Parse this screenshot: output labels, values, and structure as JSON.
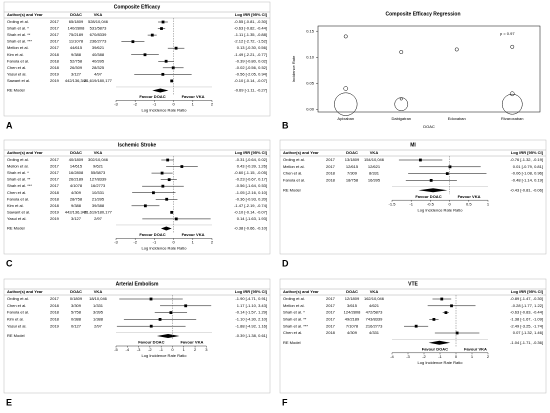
{
  "chart_data": [
    {
      "type": "forest",
      "letter": "A",
      "title": "Composite Efficacy",
      "columns": [
        "Author(s) and Year",
        "DOAC",
        "VKA",
        "Log IRR [95% CI]"
      ],
      "studies": [
        {
          "author": "Ording et al.",
          "year": 2017,
          "doac": "65/1809",
          "vka": "528/10,046",
          "estimate": -0.55,
          "lower": -0.81,
          "upper": -0.3,
          "label": "-0.55 [-0.81, -0.30]"
        },
        {
          "author": "Shah et al. *",
          "year": 2017,
          "doac": "140/2808",
          "vka": "531/5873",
          "estimate": -0.63,
          "lower": -0.82,
          "upper": -0.44,
          "label": "-0.63 [-0.82, -0.44]"
        },
        {
          "author": "Shah et al. **",
          "year": 2017,
          "doac": "75/2189",
          "vka": "670/8339",
          "estimate": -1.11,
          "lower": -1.35,
          "upper": -0.88,
          "label": "-1.11 [-1.35, -0.88]"
        },
        {
          "author": "Shah et al. ***",
          "year": 2017,
          "doac": "11/1078",
          "vka": "236/2773",
          "estimate": -2.12,
          "lower": -2.72,
          "upper": -1.52,
          "label": "-2.12 [-2.72, -1.52]"
        },
        {
          "author": "Mellon et al.",
          "year": 2017,
          "doac": "44/615",
          "vka": "39/621",
          "estimate": 0.13,
          "lower": -0.3,
          "upper": 0.56,
          "label": "0.13 [-0.30, 0.56]"
        },
        {
          "author": "Kim et al.",
          "year": 2018,
          "doac": "9/388",
          "vka": "40/388",
          "estimate": -1.49,
          "lower": -2.21,
          "upper": -0.77,
          "label": "-1.49 [-2.21, -0.77]"
        },
        {
          "author": "Fanola et al.",
          "year": 2018,
          "doac": "52/758",
          "vka": "40/395",
          "estimate": -0.39,
          "lower": -0.8,
          "upper": 0.02,
          "label": "-0.39 [-0.80, 0.02]"
        },
        {
          "author": "Chen et al.",
          "year": 2018,
          "doac": "26/309",
          "vka": "28/325",
          "estimate": -0.02,
          "lower": -0.56,
          "upper": 0.52,
          "label": "-0.02 [-0.56, 0.52]"
        },
        {
          "author": "Yasui et al.",
          "year": 2019,
          "doac": "3/127",
          "vka": "4/97",
          "estimate": -0.56,
          "lower": -2.05,
          "upper": 0.94,
          "label": "-0.56 [-2.05, 0.94]"
        },
        {
          "author": "Sawant et al.",
          "year": 2019,
          "doac": "442/136,340",
          "vka": "21,619/180,177",
          "estimate": -0.1,
          "lower": -0.14,
          "upper": -0.07,
          "label": "-0.10 [-0.14, -0.07]"
        }
      ],
      "summary": {
        "name": "RE Model",
        "estimate": -0.69,
        "lower": -1.11,
        "upper": -0.27,
        "label": "-0.69 [-1.11, -0.27]"
      },
      "xlim": [
        -3,
        2
      ],
      "xticks": [
        -3,
        -2,
        -1,
        0,
        1,
        2
      ],
      "xlabel": "Log Incidence Rate Ratio",
      "favour_left": "Favour DOAC",
      "favour_right": "Favour VKA"
    },
    {
      "type": "scatter",
      "letter": "B",
      "title": "Composite Efficacy Regression",
      "xlabel": "DOAC",
      "ylabel": "Incidence Rate",
      "annotation": "p = 0.97",
      "categories": [
        "Apixaban",
        "Dabigatran",
        "Edoxaban",
        "Rivaroxaban"
      ],
      "x": [
        "Apixaban",
        "Apixaban",
        "Apixaban",
        "Dabigatran",
        "Dabigatran",
        "Dabigatran",
        "Edoxaban",
        "Rivaroxaban",
        "Rivaroxaban",
        "Rivaroxaban"
      ],
      "values": [
        0.14,
        0.01,
        0.04,
        0.11,
        0.01,
        0.02,
        0.115,
        0.12,
        0.01,
        0.03
      ],
      "sizes": [
        2,
        90,
        3,
        2,
        30,
        1,
        2,
        2,
        70,
        3
      ],
      "ylim": [
        -0.005,
        0.16
      ],
      "yticks": [
        {
          "value": 0,
          "label": "0.00"
        },
        {
          "value": 0.05,
          "label": "0.05"
        },
        {
          "value": 0.1,
          "label": "0.10"
        },
        {
          "value": 0.15,
          "label": "0.15"
        }
      ]
    },
    {
      "type": "forest",
      "letter": "C",
      "title": "Ischemic Stroke",
      "columns": [
        "Author(s) and Year",
        "DOAC",
        "VKA",
        "Log IRR [95% CI]"
      ],
      "studies": [
        {
          "author": "Ording et al.",
          "year": 2017,
          "doac": "40/1809",
          "vka": "302/10,046",
          "estimate": -0.31,
          "lower": -0.64,
          "upper": 0.02,
          "label": "-0.31 [-0.64, 0.02]"
        },
        {
          "author": "Mellon et al.",
          "year": 2017,
          "doac": "14/615",
          "vka": "9/621",
          "estimate": 0.43,
          "lower": -0.39,
          "upper": 1.26,
          "label": "0.43 [-0.39, 1.26]"
        },
        {
          "author": "Shah et al. *",
          "year": 2017,
          "doac": "16/2808",
          "vka": "55/5873",
          "estimate": -0.6,
          "lower": -1.15,
          "upper": -0.05,
          "label": "-0.60 [-1.15, -0.05]"
        },
        {
          "author": "Shah et al. **",
          "year": 2017,
          "doac": "26/2189",
          "vka": "127/8339",
          "estimate": -0.23,
          "lower": -0.67,
          "upper": 0.17,
          "label": "-0.23 [-0.67, 0.17]"
        },
        {
          "author": "Shah et al. ***",
          "year": 2017,
          "doac": "4/1078",
          "vka": "16/2773",
          "estimate": -0.56,
          "lower": -1.64,
          "upper": 0.53,
          "label": "-0.56 [-1.64, 0.53]"
        },
        {
          "author": "Chen et al.",
          "year": 2018,
          "doac": "4/309",
          "vka": "10/331",
          "estimate": -1.05,
          "lower": -2.16,
          "upper": 0.1,
          "label": "-1.05 [-2.16, 0.10]"
        },
        {
          "author": "Fanola et al.",
          "year": 2018,
          "doac": "28/758",
          "vka": "21/395",
          "estimate": -0.36,
          "lower": -0.93,
          "upper": 0.2,
          "label": "-0.36 [-0.93, 0.20]"
        },
        {
          "author": "Kim et al.",
          "year": 2018,
          "doac": "9/388",
          "vka": "39/388",
          "estimate": -1.47,
          "lower": -2.19,
          "upper": -0.74,
          "label": "-1.47 [-2.19, -0.74]"
        },
        {
          "author": "Sawant et al.",
          "year": 2019,
          "doac": "442/136,340",
          "vka": "21,619/180,177",
          "estimate": -0.1,
          "lower": -0.14,
          "upper": -0.07,
          "label": "-0.10 [-0.14, -0.07]"
        },
        {
          "author": "Yasui et al.",
          "year": 2019,
          "doac": "3/127",
          "vka": "2/97",
          "estimate": 0.14,
          "lower": -1.63,
          "upper": 1.93,
          "label": "0.14 [-1.63, 1.93]"
        }
      ],
      "summary": {
        "name": "RE Model",
        "estimate": -0.38,
        "lower": -0.66,
        "upper": -0.1,
        "label": "-0.38 [-0.66, -0.10]"
      },
      "xlim": [
        -3,
        2
      ],
      "xticks": [
        -3,
        -2,
        -1,
        0,
        1,
        2
      ],
      "xlabel": "Log Incidence Rate Ratio",
      "favour_left": "Favour DOAC",
      "favour_right": "Favour VKA"
    },
    {
      "type": "forest",
      "letter": "D",
      "title": "MI",
      "columns": [
        "Author(s) and Year",
        "DOAC",
        "VKA",
        "Log IRR [95% CI]"
      ],
      "studies": [
        {
          "author": "Ording et al.",
          "year": 2017,
          "doac": "13/1809",
          "vka": "154/10,046",
          "estimate": -0.76,
          "lower": -1.32,
          "upper": -0.19,
          "label": "-0.76 [-1.32, -0.19]"
        },
        {
          "author": "Mellon et al.",
          "year": 2017,
          "doac": "12/615",
          "vka": "12/621",
          "estimate": 0.01,
          "lower": -0.79,
          "upper": 0.81,
          "label": "0.01 [-0.79, 0.81]"
        },
        {
          "author": "Chen et al.",
          "year": 2018,
          "doac": "7/309",
          "vka": "8/331",
          "estimate": -0.06,
          "lower": -1.08,
          "upper": 0.96,
          "label": "-0.06 [-1.08, 0.96]"
        },
        {
          "author": "Fanola et al.",
          "year": 2018,
          "doac": "18/758",
          "vka": "16/395",
          "estimate": -0.48,
          "lower": -1.14,
          "upper": 0.19,
          "label": "-0.48 [-1.14, 0.19]"
        }
      ],
      "summary": {
        "name": "RE Model",
        "estimate": -0.43,
        "lower": -0.81,
        "upper": -0.06,
        "label": "-0.43 [-0.81, -0.06]"
      },
      "xlim": [
        -1.5,
        1
      ],
      "xticks": [
        -1.5,
        -1,
        -0.5,
        0,
        0.5,
        1
      ],
      "xlabel": "Log Incidence Rate Ratio",
      "favour_left": "Favour DOAC",
      "favour_right": "Favour VKA"
    },
    {
      "type": "forest",
      "letter": "E",
      "title": "Arterial Embolism",
      "columns": [
        "Author(s) and Year",
        "DOAC",
        "VKA",
        "Log IRR [95% CI]"
      ],
      "studies": [
        {
          "author": "Ording et al.",
          "year": 2017,
          "doac": "0/1809",
          "vka": "18/10,046",
          "estimate": -1.9,
          "lower": -4.71,
          "upper": 0.91,
          "label": "-1.90 [-4.71, 0.91]"
        },
        {
          "author": "Chen et al.",
          "year": 2018,
          "doac": "3/309",
          "vka": "1/331",
          "estimate": 1.17,
          "lower": -1.1,
          "upper": 3.43,
          "label": "1.17 [-1.10, 3.43]"
        },
        {
          "author": "Fanola et al.",
          "year": 2018,
          "doac": "5/758",
          "vka": "3/395",
          "estimate": -0.14,
          "lower": -1.57,
          "upper": 1.29,
          "label": "-0.14 [-1.57, 1.29]"
        },
        {
          "author": "Kim et al.",
          "year": 2018,
          "doac": "0/388",
          "vka": "1/388",
          "estimate": -1.1,
          "lower": -4.3,
          "upper": 2.1,
          "label": "-1.10 [-4.30, 2.10]"
        },
        {
          "author": "Yasui et al.",
          "year": 2019,
          "doac": "0/127",
          "vka": "2/97",
          "estimate": -1.88,
          "lower": -4.92,
          "upper": 1.16,
          "label": "-1.88 [-4.92, 1.16]"
        }
      ],
      "summary": {
        "name": "RE Model",
        "estimate": -0.39,
        "lower": -1.38,
        "upper": 0.61,
        "label": "-0.39 [-1.38, 0.61]"
      },
      "xlim": [
        -5,
        3.5
      ],
      "xticks": [
        -5,
        -4,
        -3,
        -2,
        -1,
        0,
        1,
        2,
        3
      ],
      "xlabel": "Log Incidence Rate Ratio",
      "favour_left": "Favour DOAC",
      "favour_right": "Favour VKA"
    },
    {
      "type": "forest",
      "letter": "F",
      "title": "VTE",
      "columns": [
        "Author(s) and Year",
        "DOAC",
        "VKA",
        "Log IRR [95% CI]"
      ],
      "studies": [
        {
          "author": "Ording et al.",
          "year": 2017,
          "doac": "12/1809",
          "vka": "162/10,046",
          "estimate": -0.89,
          "lower": -1.47,
          "upper": -0.3,
          "label": "-0.89 [-1.47, -0.30]"
        },
        {
          "author": "Mellon et al.",
          "year": 2017,
          "doac": "3/615",
          "vka": "4/621",
          "estimate": -0.28,
          "lower": -1.77,
          "upper": 1.22,
          "label": "-0.28 [-1.77, 1.22]"
        },
        {
          "author": "Shah et al. *",
          "year": 2017,
          "doac": "124/2808",
          "vka": "472/5873",
          "estimate": -0.63,
          "lower": -0.83,
          "upper": -0.44,
          "label": "-0.63 [-0.83, -0.44]"
        },
        {
          "author": "Shah et al. **",
          "year": 2017,
          "doac": "49/2189",
          "vka": "743/8339",
          "estimate": -1.38,
          "lower": -1.67,
          "upper": -1.09,
          "label": "-1.38 [-1.67, -1.09]"
        },
        {
          "author": "Shah et al. ***",
          "year": 2017,
          "doac": "7/1078",
          "vka": "216/2773",
          "estimate": -2.49,
          "lower": -3.25,
          "upper": -1.74,
          "label": "-2.49 [-3.25, -1.74]"
        },
        {
          "author": "Chen et al.",
          "year": 2018,
          "doac": "4/309",
          "vka": "4/331",
          "estimate": 0.07,
          "lower": -1.32,
          "upper": 1.46,
          "label": "0.07 [-1.32, 1.46]"
        }
      ],
      "summary": {
        "name": "RE Model",
        "estimate": -1.04,
        "lower": -1.71,
        "upper": -0.36,
        "label": "-1.04 [-1.71, -0.36]"
      },
      "xlim": [
        -4,
        2
      ],
      "xticks": [
        -4,
        -3,
        -2,
        -1,
        0,
        1,
        2
      ],
      "xlabel": "Log Incidence Rate Ratio",
      "favour_left": "Favour DOAC",
      "favour_right": "Favour VKA"
    }
  ]
}
